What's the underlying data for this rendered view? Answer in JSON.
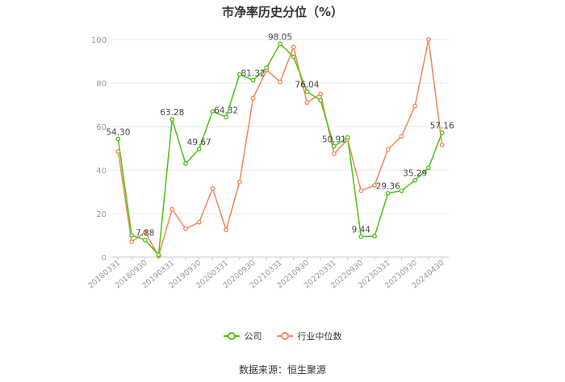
{
  "title": "市净率历史分位（%）",
  "source": "数据来源：恒生聚源",
  "colors": {
    "company": "#52c41a",
    "industry": "#f5895d",
    "grid": "#e8e8e8",
    "axis_text": "#999999"
  },
  "chart_data": {
    "type": "line",
    "title": "市净率历史分位（%）",
    "ylim": [
      0,
      100
    ],
    "yticks": [
      0,
      20,
      40,
      60,
      80,
      100
    ],
    "grid": "horizontal",
    "legend_position": "bottom",
    "x": [
      "20180331",
      "20180630",
      "20180930",
      "20181231",
      "20190331",
      "20190630",
      "20190930",
      "20191231",
      "20200331",
      "20200630",
      "20200930",
      "20201231",
      "20210331",
      "20210630",
      "20210930",
      "20211231",
      "20220331",
      "20220630",
      "20220930",
      "20221231",
      "20230331",
      "20230630",
      "20230930",
      "20231231",
      "20240430"
    ],
    "xtick_labels": [
      "20180331",
      "20180930",
      "20190331",
      "20190930",
      "20200331",
      "20200930",
      "20210331",
      "20210930",
      "20220331",
      "20220930",
      "20230331",
      "20230930",
      "20240430"
    ],
    "series": [
      {
        "name": "公司",
        "values": [
          54.3,
          10,
          7.88,
          1,
          63.28,
          43,
          49.67,
          67,
          64.32,
          84,
          81.32,
          87,
          98.05,
          92,
          76.04,
          72,
          50.91,
          55,
          9.44,
          9.6,
          29.36,
          30.5,
          35.29,
          41,
          57.16
        ],
        "labels": {
          "0": "54.30",
          "2": "7.88",
          "4": "63.28",
          "6": "49.67",
          "8": "64.32",
          "10": "81.32",
          "12": "98.05",
          "14": "76.04",
          "16": "50.91",
          "18": "9.44",
          "20": "29.36",
          "22": "35.29",
          "24": "57.16"
        }
      },
      {
        "name": "行业中位数",
        "values": [
          48.5,
          7,
          11.5,
          0.5,
          22,
          13,
          16,
          31.5,
          12.5,
          34.5,
          73,
          86,
          80.5,
          96.5,
          71,
          75,
          47.5,
          54,
          30.5,
          33,
          49.5,
          55.5,
          69.5,
          100,
          51.5
        ]
      }
    ]
  }
}
